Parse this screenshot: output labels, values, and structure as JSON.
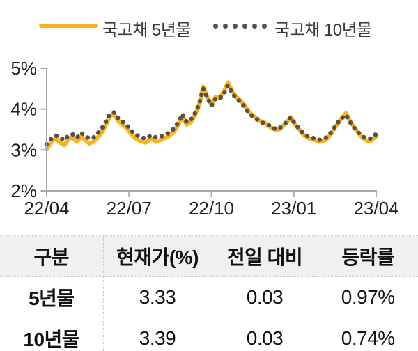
{
  "colors": {
    "line_5y": "#FAB31E",
    "dots_10y": "#55504C",
    "axis": "#A8A8A8",
    "label_text": "#1F1F1F",
    "table_header_bg": "#F0F0F0",
    "table_border": "#C9C9C9"
  },
  "legend": {
    "series5y": "국고채 5년물",
    "series10y": "국고채 10년물"
  },
  "chart_data": {
    "type": "line",
    "title": "",
    "xlabel": "",
    "ylabel": "",
    "x_range": [
      "2022-04",
      "2023-04"
    ],
    "ylim": [
      2,
      5
    ],
    "grid": false,
    "legend_position": "top",
    "x_ticks": [
      "22/04",
      "22/07",
      "22/10",
      "23/01",
      "23/04"
    ],
    "y_ticks": [
      "5%",
      "4%",
      "3%",
      "2%"
    ],
    "y_tick_values": [
      5,
      4,
      3,
      2
    ],
    "x_months": [
      0.0,
      0.2,
      0.35,
      0.5,
      0.65,
      0.8,
      0.95,
      1.1,
      1.25,
      1.4,
      1.55,
      1.7,
      1.85,
      2.0,
      2.15,
      2.3,
      2.45,
      2.6,
      2.75,
      2.9,
      3.05,
      3.2,
      3.4,
      3.6,
      3.8,
      4.0,
      4.2,
      4.4,
      4.6,
      4.8,
      4.95,
      5.1,
      5.25,
      5.4,
      5.55,
      5.7,
      5.85,
      6.0,
      6.15,
      6.3,
      6.45,
      6.6,
      6.75,
      6.9,
      7.05,
      7.2,
      7.35,
      7.5,
      7.65,
      7.8,
      7.95,
      8.1,
      8.25,
      8.4,
      8.55,
      8.7,
      8.9,
      9.05,
      9.2,
      9.35,
      9.5,
      9.65,
      9.8,
      9.95,
      10.1,
      10.25,
      10.4,
      10.55,
      10.7,
      10.9,
      11.05,
      11.2,
      11.35,
      11.5,
      11.65,
      11.8,
      11.9,
      12.0
    ],
    "series": [
      {
        "name": "국고채 5년물",
        "style": "solid",
        "color": "#FAB31E",
        "values": [
          3.02,
          3.22,
          3.28,
          3.18,
          3.12,
          3.28,
          3.3,
          3.2,
          3.33,
          3.25,
          3.16,
          3.2,
          3.3,
          3.42,
          3.6,
          3.82,
          3.88,
          3.72,
          3.62,
          3.55,
          3.42,
          3.3,
          3.22,
          3.18,
          3.28,
          3.2,
          3.26,
          3.32,
          3.42,
          3.62,
          3.84,
          3.62,
          3.68,
          3.85,
          4.1,
          4.55,
          4.3,
          4.1,
          4.3,
          4.28,
          4.42,
          4.65,
          4.45,
          4.3,
          4.22,
          4.1,
          3.95,
          3.85,
          3.78,
          3.7,
          3.66,
          3.58,
          3.52,
          3.48,
          3.55,
          3.65,
          3.8,
          3.62,
          3.5,
          3.37,
          3.3,
          3.26,
          3.24,
          3.2,
          3.22,
          3.3,
          3.44,
          3.6,
          3.74,
          3.9,
          3.7,
          3.55,
          3.42,
          3.3,
          3.23,
          3.22,
          3.28,
          3.33
        ]
      },
      {
        "name": "국고채 10년물",
        "style": "dotted",
        "color": "#55504C",
        "values": [
          3.14,
          3.3,
          3.35,
          3.3,
          3.24,
          3.36,
          3.38,
          3.3,
          3.42,
          3.35,
          3.28,
          3.3,
          3.4,
          3.52,
          3.68,
          3.88,
          3.92,
          3.78,
          3.7,
          3.62,
          3.5,
          3.4,
          3.32,
          3.28,
          3.36,
          3.3,
          3.34,
          3.4,
          3.5,
          3.68,
          3.88,
          3.68,
          3.74,
          3.9,
          4.12,
          4.5,
          4.28,
          4.08,
          4.26,
          4.25,
          4.38,
          4.58,
          4.4,
          4.26,
          4.18,
          4.06,
          3.92,
          3.82,
          3.75,
          3.68,
          3.64,
          3.6,
          3.54,
          3.5,
          3.57,
          3.66,
          3.8,
          3.63,
          3.52,
          3.4,
          3.34,
          3.3,
          3.28,
          3.25,
          3.27,
          3.34,
          3.47,
          3.62,
          3.75,
          3.86,
          3.68,
          3.54,
          3.43,
          3.33,
          3.28,
          3.28,
          3.34,
          3.39
        ]
      }
    ]
  },
  "table": {
    "headers": [
      "구분",
      "현재가(%)",
      "전일 대비",
      "등락률"
    ],
    "rows": [
      [
        "5년물",
        "3.33",
        "0.03",
        "0.97%"
      ],
      [
        "10년물",
        "3.39",
        "0.03",
        "0.74%"
      ]
    ]
  }
}
